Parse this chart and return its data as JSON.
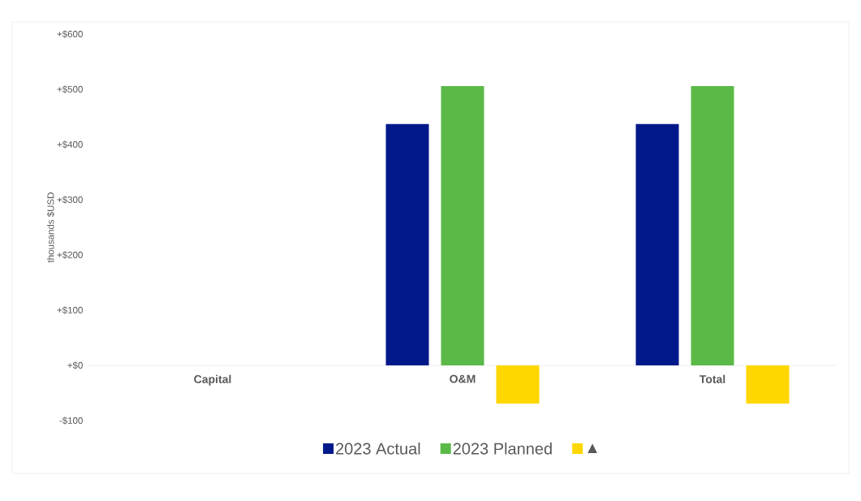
{
  "chart_data": {
    "type": "bar",
    "categories": [
      "Capital",
      "O&M",
      "Total"
    ],
    "series": [
      {
        "name": "2023 Actual",
        "color": "#00188a",
        "values": [
          null,
          437,
          437
        ]
      },
      {
        "name": "2023 Planned",
        "color": "#5bba47",
        "values": [
          null,
          506,
          506
        ]
      },
      {
        "name": "▲",
        "color": "#ffd700",
        "values": [
          null,
          -69,
          -69
        ]
      }
    ],
    "ylabel": "thousands $USD",
    "ylim": [
      -100,
      600
    ],
    "yticks": [
      {
        "value": -100,
        "label": "-$100"
      },
      {
        "value": 0,
        "label": "+$0"
      },
      {
        "value": 100,
        "label": "+$100"
      },
      {
        "value": 200,
        "label": "+$200"
      },
      {
        "value": 300,
        "label": "+$300"
      },
      {
        "value": 400,
        "label": "+$400"
      },
      {
        "value": 500,
        "label": "+$500"
      },
      {
        "value": 600,
        "label": "+$600"
      }
    ],
    "legend": "bottom"
  }
}
